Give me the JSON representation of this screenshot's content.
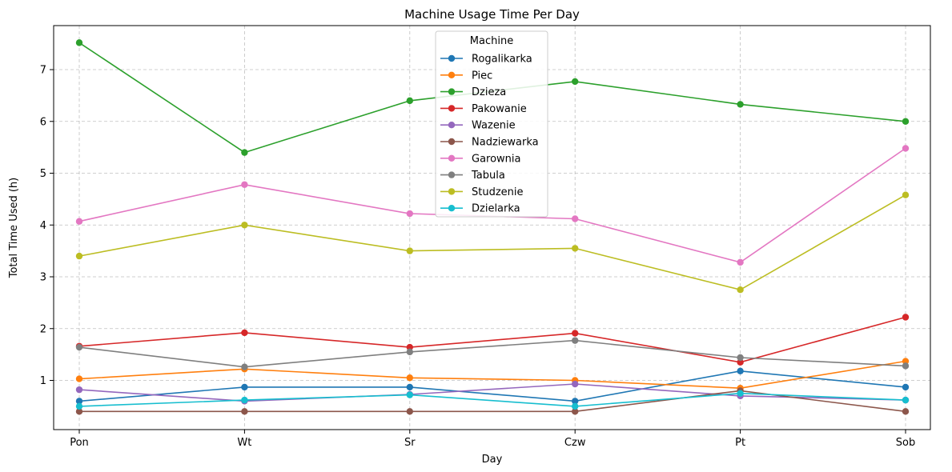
{
  "chart_data": {
    "type": "line",
    "title": "Machine Usage Time Per Day",
    "xlabel": "Day",
    "ylabel": "Total Time Used (h)",
    "categories": [
      "Pon",
      "Wt",
      "Sr",
      "Czw",
      "Pt",
      "Sob"
    ],
    "ylim": [
      0.05,
      7.85
    ],
    "yticks": [
      1,
      2,
      3,
      4,
      5,
      6,
      7
    ],
    "grid": true,
    "legend": {
      "title": "Machine",
      "placement": "upper-center"
    },
    "series": [
      {
        "name": "Rogalikarka",
        "color": "#1f77b4",
        "values": [
          0.6,
          0.87,
          0.87,
          0.6,
          1.18,
          0.87
        ]
      },
      {
        "name": "Piec",
        "color": "#ff7f0e",
        "values": [
          1.03,
          1.22,
          1.05,
          1.0,
          0.85,
          1.37
        ]
      },
      {
        "name": "Dzieza",
        "color": "#2ca02c",
        "values": [
          7.52,
          5.4,
          6.4,
          6.77,
          6.33,
          6.0
        ]
      },
      {
        "name": "Pakowanie",
        "color": "#d62728",
        "values": [
          1.66,
          1.92,
          1.64,
          1.91,
          1.35,
          2.22
        ]
      },
      {
        "name": "Wazenie",
        "color": "#9467bd",
        "values": [
          0.82,
          0.6,
          0.73,
          0.93,
          0.7,
          0.62
        ]
      },
      {
        "name": "Nadziewarka",
        "color": "#8c564b",
        "values": [
          0.4,
          0.4,
          0.4,
          0.4,
          0.8,
          0.4
        ]
      },
      {
        "name": "Garownia",
        "color": "#e377c2",
        "values": [
          4.07,
          4.78,
          4.22,
          4.12,
          3.28,
          5.48
        ]
      },
      {
        "name": "Tabula",
        "color": "#7f7f7f",
        "values": [
          1.64,
          1.26,
          1.55,
          1.77,
          1.44,
          1.28
        ]
      },
      {
        "name": "Studzenie",
        "color": "#bcbd22",
        "values": [
          3.4,
          4.0,
          3.5,
          3.55,
          2.75,
          4.58
        ]
      },
      {
        "name": "Dzielarka",
        "color": "#17becf",
        "values": [
          0.5,
          0.62,
          0.72,
          0.5,
          0.75,
          0.62
        ]
      }
    ]
  }
}
